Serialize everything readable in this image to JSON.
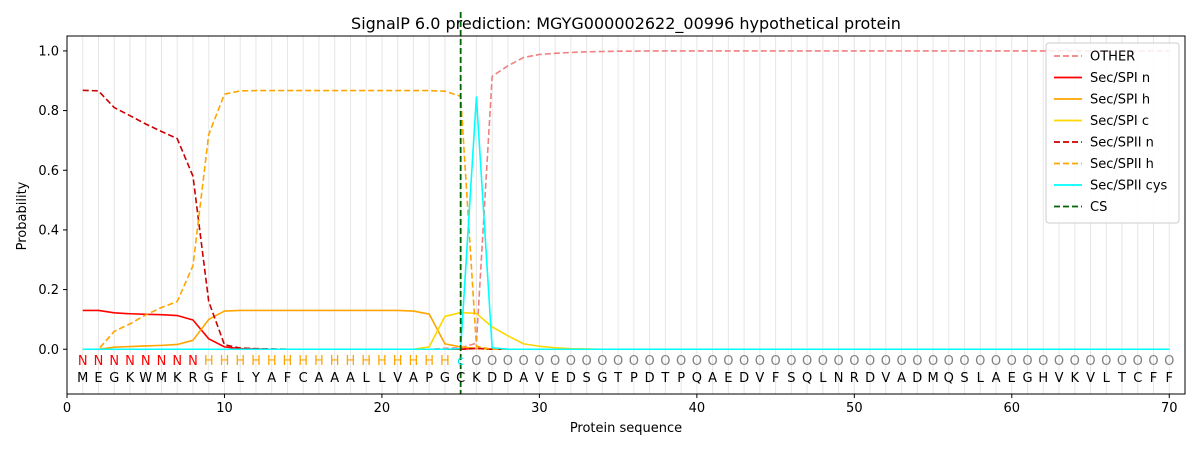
{
  "chart_data": {
    "type": "line",
    "title": "SignalP 6.0 prediction: MGYG000002622_00996 hypothetical protein",
    "xlabel": "Protein sequence",
    "ylabel": "Probability",
    "xlim": [
      0,
      71
    ],
    "ylim": [
      -0.15,
      1.05
    ],
    "xticks": [
      0,
      10,
      20,
      30,
      40,
      50,
      60,
      70
    ],
    "yticks": [
      0.0,
      0.2,
      0.4,
      0.6,
      0.8,
      1.0
    ],
    "xtick_labels": [
      "0",
      "10",
      "20",
      "30",
      "40",
      "50",
      "60",
      "70"
    ],
    "ytick_labels": [
      "0.0",
      "0.2",
      "0.4",
      "0.6",
      "0.8",
      "1.0"
    ],
    "legend_position": "top-right",
    "sequence": [
      "M",
      "E",
      "G",
      "K",
      "W",
      "M",
      "K",
      "R",
      "G",
      "F",
      "L",
      "Y",
      "A",
      "F",
      "C",
      "A",
      "A",
      "A",
      "L",
      "L",
      "V",
      "A",
      "P",
      "G",
      "C",
      "K",
      "D",
      "D",
      "A",
      "V",
      "E",
      "D",
      "S",
      "G",
      "T",
      "P",
      "D",
      "T",
      "P",
      "Q",
      "A",
      "E",
      "D",
      "V",
      "F",
      "S",
      "Q",
      "L",
      "N",
      "R",
      "D",
      "V",
      "A",
      "D",
      "M",
      "Q",
      "S",
      "L",
      "A",
      "E",
      "G",
      "H",
      "V",
      "K",
      "V",
      "L",
      "T",
      "C",
      "F",
      "F"
    ],
    "labels": [
      "N",
      "N",
      "N",
      "N",
      "N",
      "N",
      "N",
      "N",
      "H",
      "H",
      "H",
      "H",
      "H",
      "H",
      "H",
      "H",
      "H",
      "H",
      "H",
      "H",
      "H",
      "H",
      "H",
      "H",
      "c",
      "O",
      "O",
      "O",
      "O",
      "O",
      "O",
      "O",
      "O",
      "O",
      "O",
      "O",
      "O",
      "O",
      "O",
      "O",
      "O",
      "O",
      "O",
      "O",
      "O",
      "O",
      "O",
      "O",
      "O",
      "O",
      "O",
      "O",
      "O",
      "O",
      "O",
      "O",
      "O",
      "O",
      "O",
      "O",
      "O",
      "O",
      "O",
      "O",
      "O",
      "O",
      "O",
      "O",
      "O",
      "O"
    ],
    "label_colors": {
      "N": "#ff0000",
      "H": "#ffa500",
      "c": "#00e5ee",
      "O": "#808080"
    },
    "cs_position": 25,
    "cs_label": "CS",
    "cs_color": "#006400",
    "x": [
      1,
      2,
      3,
      4,
      5,
      6,
      7,
      8,
      9,
      10,
      11,
      12,
      13,
      14,
      15,
      16,
      17,
      18,
      19,
      20,
      21,
      22,
      23,
      24,
      25,
      26,
      27,
      28,
      29,
      30,
      31,
      32,
      33,
      34,
      35,
      36,
      37,
      38,
      39,
      40,
      41,
      42,
      43,
      44,
      45,
      46,
      47,
      48,
      49,
      50,
      51,
      52,
      53,
      54,
      55,
      56,
      57,
      58,
      59,
      60,
      61,
      62,
      63,
      64,
      65,
      66,
      67,
      68,
      69,
      70
    ],
    "series": [
      {
        "name": "OTHER",
        "color": "#f08080",
        "dash": true,
        "values": [
          0,
          0,
          0,
          0,
          0,
          0,
          0,
          0,
          0,
          0,
          0,
          0,
          0,
          0,
          0,
          0,
          0,
          0,
          0,
          0,
          0,
          0,
          0,
          0.003,
          0.005,
          0.02,
          0.915,
          0.95,
          0.978,
          0.988,
          0.992,
          0.995,
          0.997,
          0.998,
          0.999,
          0.999,
          1,
          1,
          1,
          1,
          1,
          1,
          1,
          1,
          1,
          1,
          1,
          1,
          1,
          1,
          1,
          1,
          1,
          1,
          1,
          1,
          1,
          1,
          1,
          1,
          1,
          1,
          1,
          1,
          1,
          1,
          1,
          1,
          1,
          1
        ]
      },
      {
        "name": "Sec/SPI n",
        "color": "#ff0000",
        "dash": false,
        "values": [
          0.13,
          0.13,
          0.122,
          0.119,
          0.117,
          0.116,
          0.113,
          0.098,
          0.035,
          0.008,
          0.002,
          0.001,
          0,
          0,
          0,
          0,
          0,
          0,
          0,
          0,
          0,
          0,
          0,
          0,
          0,
          0.003,
          0,
          0,
          0,
          0,
          0,
          0,
          0,
          0,
          0,
          0,
          0,
          0,
          0,
          0,
          0,
          0,
          0,
          0,
          0,
          0,
          0,
          0,
          0,
          0,
          0,
          0,
          0,
          0,
          0,
          0,
          0,
          0,
          0,
          0,
          0,
          0,
          0,
          0,
          0,
          0,
          0,
          0,
          0,
          0
        ]
      },
      {
        "name": "Sec/SPI h",
        "color": "#ffa500",
        "dash": false,
        "values": [
          0,
          0,
          0.007,
          0.009,
          0.011,
          0.013,
          0.016,
          0.03,
          0.1,
          0.128,
          0.13,
          0.13,
          0.13,
          0.13,
          0.13,
          0.13,
          0.13,
          0.13,
          0.13,
          0.13,
          0.13,
          0.128,
          0.118,
          0.018,
          0.008,
          0.003,
          0,
          0,
          0,
          0,
          0,
          0,
          0,
          0,
          0,
          0,
          0,
          0,
          0,
          0,
          0,
          0,
          0,
          0,
          0,
          0,
          0,
          0,
          0,
          0,
          0,
          0,
          0,
          0,
          0,
          0,
          0,
          0,
          0,
          0,
          0,
          0,
          0,
          0,
          0,
          0,
          0,
          0,
          0,
          0
        ]
      },
      {
        "name": "Sec/SPI c",
        "color": "#ffd700",
        "dash": false,
        "values": [
          0,
          0,
          0,
          0,
          0,
          0,
          0,
          0,
          0,
          0,
          0,
          0,
          0,
          0,
          0,
          0,
          0,
          0,
          0,
          0,
          0,
          0,
          0.008,
          0.11,
          0.123,
          0.12,
          0.075,
          0.045,
          0.018,
          0.01,
          0.005,
          0.002,
          0.001,
          0,
          0,
          0,
          0,
          0,
          0,
          0,
          0,
          0,
          0,
          0,
          0,
          0,
          0,
          0,
          0,
          0,
          0,
          0,
          0,
          0,
          0,
          0,
          0,
          0,
          0,
          0,
          0,
          0,
          0,
          0,
          0,
          0,
          0,
          0,
          0,
          0
        ]
      },
      {
        "name": "Sec/SPII n",
        "color": "#cc0000",
        "dash": true,
        "values": [
          0.868,
          0.866,
          0.81,
          0.783,
          0.755,
          0.73,
          0.706,
          0.58,
          0.16,
          0.015,
          0.004,
          0.002,
          0.001,
          0,
          0,
          0,
          0,
          0,
          0,
          0,
          0,
          0,
          0,
          0,
          0,
          0.003,
          0,
          0,
          0,
          0,
          0,
          0,
          0,
          0,
          0,
          0,
          0,
          0,
          0,
          0,
          0,
          0,
          0,
          0,
          0,
          0,
          0,
          0,
          0,
          0,
          0,
          0,
          0,
          0,
          0,
          0,
          0,
          0,
          0,
          0,
          0,
          0,
          0,
          0,
          0,
          0,
          0,
          0,
          0,
          0
        ]
      },
      {
        "name": "Sec/SPII h",
        "color": "#ffa500",
        "dash": true,
        "values": [
          0,
          0,
          0.06,
          0.085,
          0.115,
          0.14,
          0.16,
          0.28,
          0.72,
          0.855,
          0.866,
          0.867,
          0.867,
          0.867,
          0.867,
          0.867,
          0.867,
          0.867,
          0.867,
          0.867,
          0.867,
          0.867,
          0.867,
          0.865,
          0.848,
          0.01,
          0,
          0,
          0,
          0,
          0,
          0,
          0,
          0,
          0,
          0,
          0,
          0,
          0,
          0,
          0,
          0,
          0,
          0,
          0,
          0,
          0,
          0,
          0,
          0,
          0,
          0,
          0,
          0,
          0,
          0,
          0,
          0,
          0,
          0,
          0,
          0,
          0,
          0,
          0,
          0,
          0,
          0,
          0,
          0
        ]
      },
      {
        "name": "Sec/SPII cys",
        "color": "#00ffff",
        "dash": false,
        "values": [
          0,
          0,
          0,
          0,
          0,
          0,
          0,
          0,
          0,
          0,
          0,
          0,
          0,
          0,
          0,
          0,
          0,
          0,
          0,
          0,
          0,
          0,
          0,
          0,
          0.002,
          0.845,
          0.005,
          0,
          0,
          0,
          0,
          0,
          0,
          0,
          0,
          0,
          0,
          0,
          0,
          0,
          0,
          0,
          0,
          0,
          0,
          0,
          0,
          0,
          0,
          0,
          0,
          0,
          0,
          0,
          0,
          0,
          0,
          0,
          0,
          0,
          0,
          0,
          0,
          0,
          0,
          0,
          0,
          0,
          0,
          0
        ]
      }
    ]
  }
}
